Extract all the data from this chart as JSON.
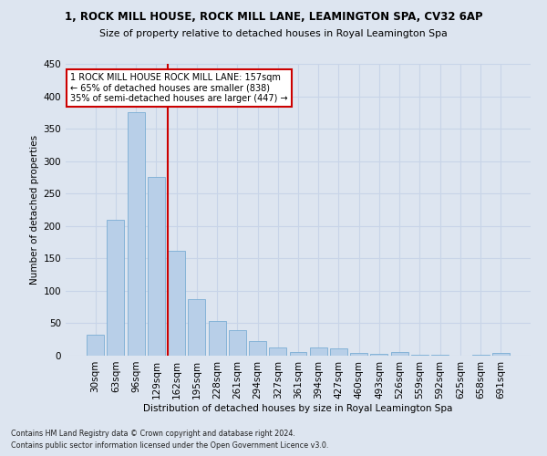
{
  "title": "1, ROCK MILL HOUSE, ROCK MILL LANE, LEAMINGTON SPA, CV32 6AP",
  "subtitle": "Size of property relative to detached houses in Royal Leamington Spa",
  "xlabel": "Distribution of detached houses by size in Royal Leamington Spa",
  "ylabel": "Number of detached properties",
  "categories": [
    "30sqm",
    "63sqm",
    "96sqm",
    "129sqm",
    "162sqm",
    "195sqm",
    "228sqm",
    "261sqm",
    "294sqm",
    "327sqm",
    "361sqm",
    "394sqm",
    "427sqm",
    "460sqm",
    "493sqm",
    "526sqm",
    "559sqm",
    "592sqm",
    "625sqm",
    "658sqm",
    "691sqm"
  ],
  "values": [
    32,
    210,
    376,
    275,
    162,
    87,
    53,
    39,
    23,
    12,
    6,
    12,
    11,
    4,
    3,
    5,
    1,
    1,
    0,
    1,
    4
  ],
  "bar_color": "#b8cfe8",
  "bar_edge_color": "#7aadd4",
  "vline_color": "#cc0000",
  "vline_x_index": 3.57,
  "annotation_text": "1 ROCK MILL HOUSE ROCK MILL LANE: 157sqm\n← 65% of detached houses are smaller (838)\n35% of semi-detached houses are larger (447) →",
  "annotation_box_facecolor": "#ffffff",
  "annotation_box_edgecolor": "#cc0000",
  "grid_color": "#c8d4e8",
  "background_color": "#dde5f0",
  "ylim": [
    0,
    450
  ],
  "yticks": [
    0,
    50,
    100,
    150,
    200,
    250,
    300,
    350,
    400,
    450
  ],
  "footer1": "Contains HM Land Registry data © Crown copyright and database right 2024.",
  "footer2": "Contains public sector information licensed under the Open Government Licence v3.0."
}
